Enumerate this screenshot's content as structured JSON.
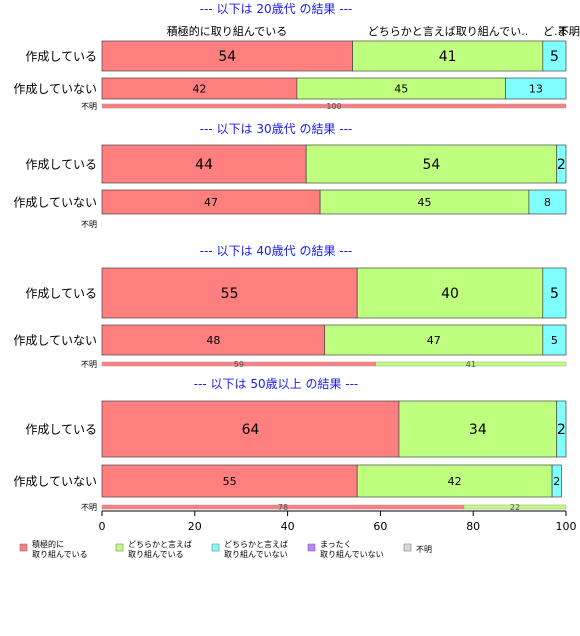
{
  "chart_data": {
    "type": "bar",
    "orientation": "horizontal",
    "stacked": true,
    "xlim": [
      0,
      100
    ],
    "x_ticks": [
      0,
      20,
      40,
      60,
      80,
      100
    ],
    "series_names": [
      "積極的に取り組んでいる",
      "どちらかと言えば取り組んでいる",
      "どちらかと言えば取り組んでいない",
      "まったく取り組んでいない",
      "不明"
    ],
    "colors": [
      "#ff7f7f",
      "#bfff7f",
      "#7fffff",
      "#bf7fff",
      "#d9d9d9"
    ],
    "top_labels": [
      "積極的に取り組んでいる",
      "どちらかと言えば取り組んでい..",
      "ど..",
      "ま..",
      "不明"
    ],
    "legend": [
      "積極的に\n取り組んでいる",
      "どちらかと言えば\n取り組んでいる",
      "どちらかと言えば\n取り組んでいない",
      "まったく\n取り組んでいない",
      "不明"
    ],
    "panels": [
      {
        "title": "--- 以下は 20歳代 の結果 ---",
        "rows": [
          {
            "label": "作成している",
            "values": [
              54,
              41,
              5,
              0,
              0
            ],
            "labels": [
              "54",
              "41",
              "5",
              "",
              ""
            ]
          },
          {
            "label": "作成していない",
            "values": [
              42,
              45,
              13,
              0,
              0
            ],
            "labels": [
              "42",
              "45",
              "13",
              "",
              ""
            ]
          },
          {
            "label": "不明",
            "values": [
              100,
              0,
              0,
              0,
              0
            ],
            "labels": [
              "100",
              "",
              "",
              "",
              ""
            ]
          }
        ]
      },
      {
        "title": "--- 以下は 30歳代 の結果 ---",
        "rows": [
          {
            "label": "作成している",
            "values": [
              44,
              54,
              2,
              0,
              0
            ],
            "labels": [
              "44",
              "54",
              "2",
              "",
              ""
            ]
          },
          {
            "label": "作成していない",
            "values": [
              47,
              45,
              8,
              0,
              0
            ],
            "labels": [
              "47",
              "45",
              "8",
              "",
              ""
            ]
          },
          {
            "label": "不明",
            "values": [
              0,
              0,
              0,
              0,
              0
            ],
            "labels": [
              "",
              "",
              "",
              "",
              ""
            ]
          }
        ]
      },
      {
        "title": "--- 以下は 40歳代 の結果 ---",
        "rows": [
          {
            "label": "作成している",
            "values": [
              55,
              40,
              5,
              0,
              0
            ],
            "labels": [
              "55",
              "40",
              "5",
              "",
              ""
            ]
          },
          {
            "label": "作成していない",
            "values": [
              48,
              47,
              5,
              0,
              0
            ],
            "labels": [
              "48",
              "47",
              "5",
              "",
              ""
            ]
          },
          {
            "label": "不明",
            "values": [
              59,
              41,
              0,
              0,
              0
            ],
            "labels": [
              "59",
              "41",
              "",
              "",
              ""
            ]
          }
        ]
      },
      {
        "title": "--- 以下は 50歳以上 の結果 ---",
        "rows": [
          {
            "label": "作成している",
            "values": [
              64,
              34,
              2,
              0,
              0
            ],
            "labels": [
              "64",
              "34",
              "2",
              "",
              ""
            ]
          },
          {
            "label": "作成していない",
            "values": [
              55,
              42,
              2,
              0,
              0
            ],
            "labels": [
              "55",
              "42",
              "2",
              "",
              ""
            ]
          },
          {
            "label": "不明",
            "values": [
              78,
              22,
              0,
              0,
              0
            ],
            "labels": [
              "78",
              "22",
              "",
              "",
              ""
            ]
          }
        ]
      }
    ]
  }
}
